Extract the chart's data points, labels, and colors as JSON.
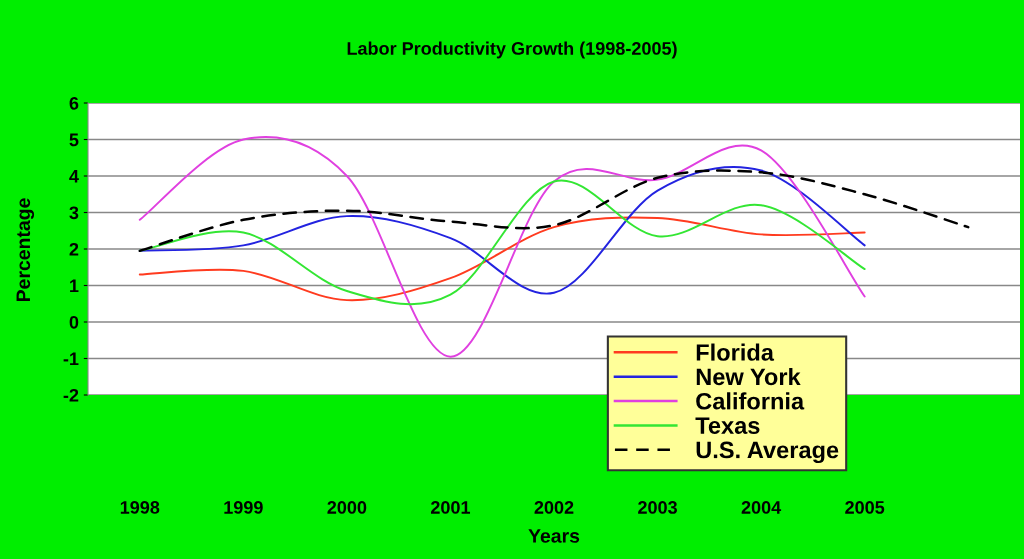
{
  "chart_data": {
    "type": "line",
    "title": "Labor Productivity Growth (1998-2005)",
    "xlabel": "Years",
    "ylabel": "Percentage",
    "categories": [
      "1998",
      "1999",
      "2000",
      "2001",
      "2002",
      "2003",
      "2004",
      "2005",
      null
    ],
    "series": [
      {
        "name": "Florida",
        "color": "#ff3b1f",
        "values": [
          1.3,
          1.4,
          0.6,
          1.2,
          2.6,
          2.85,
          2.4,
          2.45,
          null
        ]
      },
      {
        "name": "New York",
        "color": "#2323e0",
        "values": [
          1.95,
          2.1,
          2.9,
          2.3,
          0.8,
          3.6,
          4.15,
          2.1,
          null
        ]
      },
      {
        "name": "California",
        "color": "#e040e0",
        "values": [
          2.8,
          5.0,
          4.0,
          -0.95,
          3.85,
          3.9,
          4.7,
          0.7,
          null
        ]
      },
      {
        "name": "Texas",
        "color": "#33e633",
        "values": [
          1.95,
          2.45,
          0.85,
          0.75,
          3.85,
          2.35,
          3.2,
          1.45,
          null
        ]
      },
      {
        "name": "U.S. Average",
        "color": "#000000",
        "line_style": "dashed",
        "values": [
          1.95,
          2.8,
          3.05,
          2.75,
          2.65,
          3.95,
          4.1,
          3.5,
          2.6
        ]
      }
    ],
    "ylim": [
      -2,
      6
    ],
    "yticks": [
      -2,
      -1,
      0,
      1,
      2,
      3,
      4,
      5,
      6
    ],
    "grid": "y",
    "legend": "bottom right",
    "marker": "none",
    "line_style": "solid"
  }
}
